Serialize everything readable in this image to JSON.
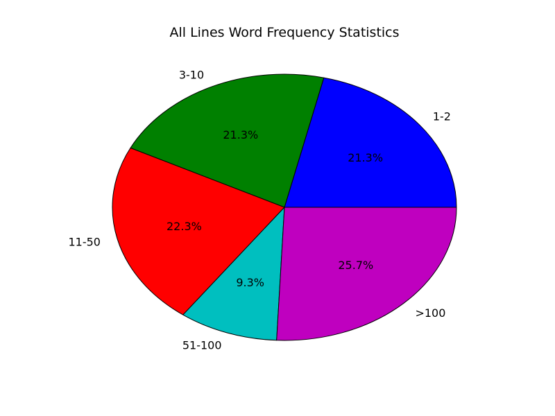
{
  "chart_data": {
    "type": "pie",
    "title": "All Lines Word Frequency Statistics",
    "categories": [
      "1-2",
      "3-10",
      "11-50",
      "51-100",
      ">100"
    ],
    "values": [
      21.3,
      21.3,
      22.3,
      9.3,
      25.7
    ],
    "value_labels": [
      "21.3%",
      "21.3%",
      "22.3%",
      "9.3%",
      "25.7%"
    ],
    "colors": [
      "#0000ff",
      "#008000",
      "#ff0000",
      "#00bfbf",
      "#bf00bf"
    ],
    "start_angle_deg": 0,
    "direction": "counterclockwise",
    "legend": "none"
  }
}
